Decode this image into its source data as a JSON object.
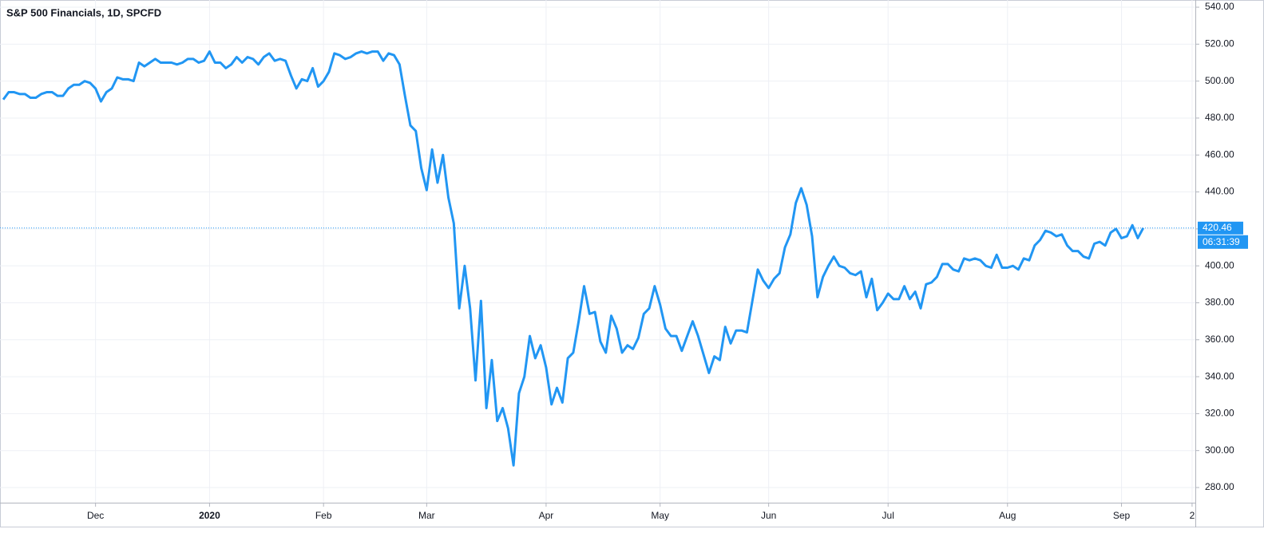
{
  "chart_data": {
    "type": "line",
    "title": "S&P 500 Financials, 1D, SPCFD",
    "color": "#2196f3",
    "grid": true,
    "countdown": "06:31:39",
    "ylim": [
      271.8,
      543.9
    ],
    "yticks": [
      {
        "value": 280,
        "label": "280.00"
      },
      {
        "value": 300,
        "label": "300.00"
      },
      {
        "value": 320,
        "label": "320.00"
      },
      {
        "value": 340,
        "label": "340.00"
      },
      {
        "value": 360,
        "label": "360.00"
      },
      {
        "value": 380,
        "label": "380.00"
      },
      {
        "value": 400,
        "label": "400.00"
      },
      {
        "value": 420,
        "label": "420.00"
      },
      {
        "value": 440,
        "label": "440.00"
      },
      {
        "value": 460,
        "label": "460.00"
      },
      {
        "value": 480,
        "label": "480.00"
      },
      {
        "value": 500,
        "label": "500.00"
      },
      {
        "value": 520,
        "label": "520.00"
      },
      {
        "value": 540,
        "label": "540.00"
      }
    ],
    "xlim": [
      -0.6,
      219.6
    ],
    "xticks": [
      {
        "value": 17,
        "label": "Dec"
      },
      {
        "value": 38,
        "label": "2020"
      },
      {
        "value": 59,
        "label": "Feb"
      },
      {
        "value": 78,
        "label": "Mar"
      },
      {
        "value": 100,
        "label": "Apr"
      },
      {
        "value": 121,
        "label": "May"
      },
      {
        "value": 141,
        "label": "Jun"
      },
      {
        "value": 163,
        "label": "Jul"
      },
      {
        "value": 185,
        "label": "Aug"
      },
      {
        "value": 206,
        "label": "Sep"
      },
      {
        "value": 219,
        "label": "2"
      }
    ],
    "x": [
      0,
      1,
      2,
      3,
      4,
      5,
      6,
      7,
      8,
      9,
      10,
      11,
      12,
      13,
      14,
      15,
      16,
      17,
      18,
      19,
      20,
      21,
      22,
      23,
      24,
      25,
      26,
      27,
      28,
      29,
      30,
      31,
      32,
      33,
      34,
      35,
      36,
      37,
      38,
      39,
      40,
      41,
      42,
      43,
      44,
      45,
      46,
      47,
      48,
      49,
      50,
      51,
      52,
      53,
      54,
      55,
      56,
      57,
      58,
      59,
      60,
      61,
      62,
      63,
      64,
      65,
      66,
      67,
      68,
      69,
      70,
      71,
      72,
      73,
      74,
      75,
      76,
      77,
      78,
      79,
      80,
      81,
      82,
      83,
      84,
      85,
      86,
      87,
      88,
      89,
      90,
      91,
      92,
      93,
      94,
      95,
      96,
      97,
      98,
      99,
      100,
      101,
      102,
      103,
      104,
      105,
      106,
      107,
      108,
      109,
      110,
      111,
      112,
      113,
      114,
      115,
      116,
      117,
      118,
      119,
      120,
      121,
      122,
      123,
      124,
      125,
      126,
      127,
      128,
      129,
      130,
      131,
      132,
      133,
      134,
      135,
      136,
      137,
      138,
      139,
      140,
      141,
      142,
      143,
      144,
      145,
      146,
      147,
      148,
      149,
      150,
      151,
      152,
      153,
      154,
      155,
      156,
      157,
      158,
      159,
      160,
      161,
      162,
      163,
      164,
      165,
      166,
      167,
      168,
      169,
      170,
      171,
      172,
      173,
      174,
      175,
      176,
      177,
      178,
      179,
      180,
      181,
      182,
      183,
      184,
      185,
      186,
      187,
      188,
      189,
      190,
      191,
      192,
      193,
      194,
      195,
      196,
      197,
      198,
      199,
      200,
      201,
      202,
      203,
      204,
      205,
      206,
      207,
      208,
      209,
      210
    ],
    "values": [
      490,
      494,
      494,
      493,
      493,
      491,
      491,
      493,
      494,
      494,
      492,
      492,
      496,
      498,
      498,
      500,
      499,
      496,
      489,
      494,
      496,
      502,
      501,
      501,
      500,
      510,
      508,
      510,
      512,
      510,
      510,
      510,
      509,
      510,
      512,
      512,
      510,
      511,
      516,
      510,
      510,
      507,
      509,
      513,
      510,
      513,
      512,
      509,
      513,
      515,
      511,
      512,
      511,
      503,
      496,
      501,
      500,
      507,
      497,
      500,
      505,
      515,
      514,
      512,
      513,
      515,
      516,
      515,
      516,
      516,
      511,
      515,
      514,
      509,
      492,
      476,
      473,
      453,
      441,
      463,
      445,
      460,
      437,
      423,
      377,
      400,
      377,
      338,
      381,
      323,
      349,
      316,
      323,
      312,
      292,
      331,
      340,
      362,
      350,
      357,
      345,
      325,
      334,
      326,
      350,
      353,
      370,
      389,
      374,
      375,
      359,
      353,
      373,
      366,
      353,
      357,
      355,
      361,
      374,
      377,
      389,
      379,
      366,
      362,
      362,
      354,
      362,
      370,
      362,
      352,
      342,
      351,
      349,
      367,
      358,
      365,
      365,
      364,
      381,
      398,
      392,
      388,
      393,
      396,
      410,
      417,
      434,
      442,
      433,
      416,
      383,
      394,
      400,
      405,
      400,
      399,
      396,
      395,
      397,
      383,
      393,
      376,
      380,
      385,
      382,
      382,
      389,
      382,
      386,
      377,
      390,
      391,
      394,
      401,
      401,
      398,
      397,
      404,
      403,
      404,
      403,
      400,
      399,
      406,
      399,
      399,
      400,
      398,
      404,
      403,
      411,
      414,
      419,
      418,
      416,
      417,
      411,
      408,
      408,
      405,
      404,
      412,
      413,
      411,
      418,
      420,
      415,
      416,
      422,
      415,
      420.46
    ]
  }
}
